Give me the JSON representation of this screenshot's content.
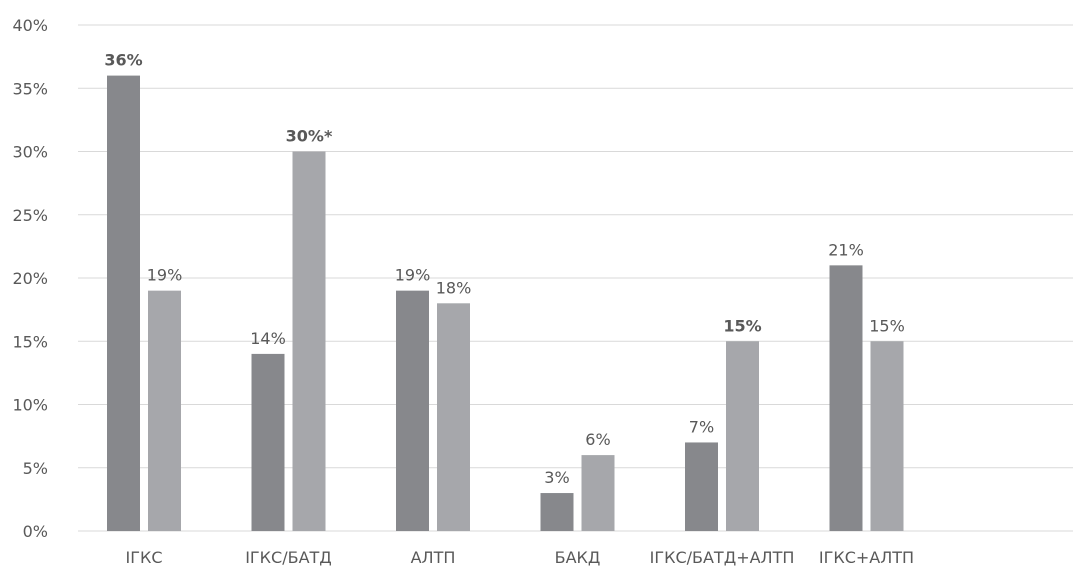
{
  "chart_data": {
    "type": "bar",
    "categories": [
      "ІГКС",
      "ІГКС/БАТД",
      "АЛТП",
      "БАКД",
      "ІГКС/БАТД+АЛТП",
      "ІГКС+АЛТП"
    ],
    "series": [
      {
        "color": "#87888c",
        "values": [
          36,
          14,
          19,
          3,
          7,
          21
        ],
        "labels": [
          "36%",
          "14%",
          "19%",
          "3%",
          "7%",
          "21%"
        ],
        "bold": [
          true,
          false,
          false,
          false,
          false,
          false
        ]
      },
      {
        "color": "#a6a7ab",
        "values": [
          19,
          30,
          18,
          6,
          15,
          15
        ],
        "labels": [
          "19%",
          "30%*",
          "18%",
          "6%",
          "15%",
          "15%"
        ],
        "bold": [
          false,
          true,
          false,
          false,
          true,
          false
        ]
      }
    ],
    "ylim": [
      0,
      40
    ],
    "yticks": [
      0,
      5,
      10,
      15,
      20,
      25,
      30,
      35,
      40
    ],
    "ytick_labels": [
      "0%",
      "5%",
      "10%",
      "15%",
      "20%",
      "25%",
      "30%",
      "35%",
      "40%"
    ],
    "grid": true,
    "legend": "none"
  }
}
